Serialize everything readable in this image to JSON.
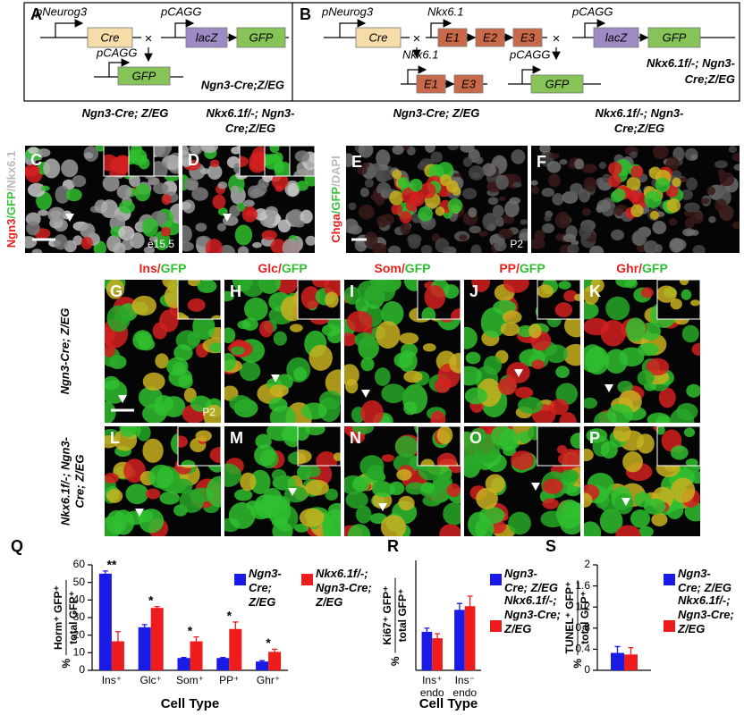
{
  "panel_a": {
    "letter": "A",
    "promoter1": "pNeurog3",
    "cre": "Cre",
    "cross": "×",
    "promoter2": "pCAGG",
    "lacz": "lacZ",
    "gfp": "GFP",
    "promoter3": "pCAGG",
    "gfp2": "GFP",
    "genotype": "Ngn3-Cre;Z/EG"
  },
  "panel_b": {
    "letter": "B",
    "promoter1": "pNeurog3",
    "cre": "Cre",
    "cross1": "×",
    "gene": "Nkx6.1",
    "exons": [
      "E1",
      "E2",
      "E3"
    ],
    "cross2": "×",
    "promoter2": "pCAGG",
    "lacz": "lacZ",
    "gfp": "GFP",
    "gene2": "Nkx6.1",
    "exons2": [
      "E1",
      "E3"
    ],
    "promoter3": "pCAGG",
    "gfp2": "GFP",
    "genotype": "Nkx6.1f/-; Ngn3-Cre;Z/EG"
  },
  "embryo_panels": {
    "stain": [
      {
        "text": "Ngn3",
        "color": "#e8201e"
      },
      {
        "text": "/",
        "color": "#3cc23c"
      },
      {
        "text": "GFP",
        "color": "#3cc23c"
      },
      {
        "text": "/",
        "color": "#bbbbbb"
      },
      {
        "text": "Nkx6.1",
        "color": "#bbbbbb"
      }
    ],
    "columns": [
      {
        "letter": "C",
        "header": "Ngn3-Cre; Z/EG"
      },
      {
        "letter": "D",
        "header": "Nkx6.1f/-; Ngn3-Cre;Z/EG"
      }
    ],
    "stage": "e15.5"
  },
  "postnatal_panels": {
    "stain": [
      {
        "text": "Chga",
        "color": "#e8201e"
      },
      {
        "text": "/",
        "color": "#3cc23c"
      },
      {
        "text": "GFP",
        "color": "#3cc23c"
      },
      {
        "text": "/",
        "color": "#bbbbbb"
      },
      {
        "text": "DAPI",
        "color": "#bbbbbb"
      }
    ],
    "columns": [
      {
        "letter": "E",
        "header": "Ngn3-Cre; Z/EG"
      },
      {
        "letter": "F",
        "header": "Nkx6.1f/-; Ngn3-Cre;Z/EG"
      }
    ],
    "stage": "P2"
  },
  "hormone_grid": {
    "columns": [
      {
        "hormone": "Ins",
        "sep": "/",
        "reporter": "GFP"
      },
      {
        "hormone": "Glc",
        "sep": "/",
        "reporter": "GFP"
      },
      {
        "hormone": "Som",
        "sep": "/",
        "reporter": "GFP"
      },
      {
        "hormone": "PP",
        "sep": "/",
        "reporter": "GFP"
      },
      {
        "hormone": "Ghr",
        "sep": "/",
        "reporter": "GFP"
      }
    ],
    "rows": [
      {
        "label": "Ngn3-Cre; Z/EG",
        "letters": [
          "G",
          "H",
          "I",
          "J",
          "K"
        ]
      },
      {
        "label": "Nkx6.1f/-; Ngn3-Cre; Z/EG",
        "letters": [
          "L",
          "M",
          "N",
          "O",
          "P"
        ]
      }
    ],
    "stage": "P2"
  },
  "chart_data": [
    {
      "type": "bar",
      "letter": "Q",
      "y_label": {
        "prefix": "%",
        "numerator": "Horm⁺ GFP⁺",
        "denominator": "total GFP⁺"
      },
      "x_label": "Cell Type",
      "categories": [
        "Ins⁺",
        "Glc⁺",
        "Som⁺",
        "PP⁺",
        "Ghr⁺"
      ],
      "series": [
        {
          "name": "Ngn3-Cre; Z/EG",
          "color": "#1a1ae6",
          "values": [
            55,
            24.5,
            7,
            7,
            5
          ],
          "errors": [
            1.5,
            1.5,
            0.3,
            0.3,
            0.5
          ]
        },
        {
          "name": "Nkx6.1f/-; Ngn3-Cre; Z/EG",
          "color": "#ee1c1c",
          "values": [
            16.5,
            35.5,
            16.5,
            23.5,
            10.5
          ],
          "errors": [
            5.5,
            0.8,
            2.5,
            4,
            1.5
          ]
        }
      ],
      "significance": [
        "**",
        "*",
        "*",
        "*",
        "*"
      ],
      "ylim": [
        0,
        60
      ],
      "yticks": [
        0,
        10,
        20,
        30,
        40,
        50,
        60
      ]
    },
    {
      "type": "bar",
      "letter": "R",
      "y_label": {
        "prefix": "%",
        "numerator": "Ki67⁺ GFP⁺",
        "denominator": "total GFP⁺"
      },
      "x_label": "Cell Type",
      "categories": [
        "Ins⁺ endo",
        "Ins⁻ endo"
      ],
      "series": [
        {
          "name": "Ngn3-Cre; Z/EG",
          "color": "#1a1ae6",
          "values": [
            21,
            33
          ],
          "errors": [
            2,
            3.5
          ]
        },
        {
          "name": "Nkx6.1f/-; Ngn3-Cre; Z/EG",
          "color": "#ee1c1c",
          "values": [
            17.5,
            35
          ],
          "errors": [
            2.5,
            5.5
          ]
        }
      ],
      "ylim": [
        0,
        60
      ]
    },
    {
      "type": "bar",
      "letter": "S",
      "y_label": {
        "prefix": "%",
        "numerator": "TUNEL⁺ GFP⁺",
        "denominator": "total GFP⁺"
      },
      "categories": [
        null
      ],
      "series": [
        {
          "name": "Ngn3-Cre; Z/EG",
          "color": "#1a1ae6",
          "values": [
            0.33
          ],
          "errors": [
            0.12
          ]
        },
        {
          "name": "Nkx6.1f/-; Ngn3-Cre; Z/EG",
          "color": "#ee1c1c",
          "values": [
            0.3
          ],
          "errors": [
            0.13
          ]
        }
      ],
      "ylim": [
        0,
        2
      ],
      "yticks": [
        0,
        0.4,
        0.8,
        1.2,
        1.6,
        2
      ]
    }
  ]
}
